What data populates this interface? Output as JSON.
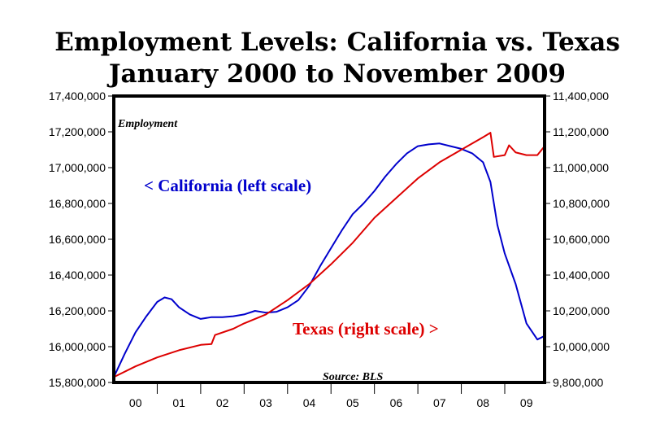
{
  "chart_data": {
    "type": "line",
    "title": "Employment Levels: California vs. Texas",
    "subtitle": "January 2000 to November 2009",
    "inner_label": "Employment",
    "source": "Source: BLS",
    "x_tick_labels": [
      "00",
      "01",
      "02",
      "03",
      "04",
      "05",
      "06",
      "07",
      "08",
      "09"
    ],
    "x_range": [
      2000.0,
      2009.917
    ],
    "y_left": {
      "range": [
        15800000,
        17400000
      ],
      "ticks": [
        "15,800,000",
        "16,000,000",
        "16,200,000",
        "16,400,000",
        "16,600,000",
        "16,800,000",
        "17,000,000",
        "17,200,000",
        "17,400,000"
      ],
      "tick_values": [
        15800000,
        16000000,
        16200000,
        16400000,
        16600000,
        16800000,
        17000000,
        17200000,
        17400000
      ]
    },
    "y_right": {
      "range": [
        9800000,
        11400000
      ],
      "ticks": [
        "9,800,000",
        "10,000,000",
        "10,200,000",
        "10,400,000",
        "10,600,000",
        "10,800,000",
        "11,000,000",
        "11,200,000",
        "11,400,000"
      ],
      "tick_values": [
        9800000,
        10000000,
        10200000,
        10400000,
        10600000,
        10800000,
        11000000,
        11200000,
        11400000
      ]
    },
    "series": [
      {
        "name": "California",
        "axis": "left",
        "color": "#0000cc",
        "annotation": "< California (left scale)",
        "points": [
          [
            2000.0,
            15830000
          ],
          [
            2000.25,
            15960000
          ],
          [
            2000.5,
            16080000
          ],
          [
            2000.75,
            16170000
          ],
          [
            2001.0,
            16250000
          ],
          [
            2001.17,
            16275000
          ],
          [
            2001.33,
            16265000
          ],
          [
            2001.5,
            16220000
          ],
          [
            2001.75,
            16180000
          ],
          [
            2002.0,
            16155000
          ],
          [
            2002.25,
            16165000
          ],
          [
            2002.5,
            16165000
          ],
          [
            2002.75,
            16170000
          ],
          [
            2003.0,
            16180000
          ],
          [
            2003.25,
            16200000
          ],
          [
            2003.5,
            16190000
          ],
          [
            2003.75,
            16195000
          ],
          [
            2004.0,
            16220000
          ],
          [
            2004.25,
            16260000
          ],
          [
            2004.5,
            16340000
          ],
          [
            2004.75,
            16450000
          ],
          [
            2005.0,
            16550000
          ],
          [
            2005.25,
            16650000
          ],
          [
            2005.5,
            16740000
          ],
          [
            2005.75,
            16800000
          ],
          [
            2006.0,
            16870000
          ],
          [
            2006.25,
            16950000
          ],
          [
            2006.5,
            17020000
          ],
          [
            2006.75,
            17080000
          ],
          [
            2007.0,
            17120000
          ],
          [
            2007.25,
            17130000
          ],
          [
            2007.5,
            17135000
          ],
          [
            2007.75,
            17120000
          ],
          [
            2008.0,
            17105000
          ],
          [
            2008.25,
            17080000
          ],
          [
            2008.5,
            17030000
          ],
          [
            2008.67,
            16920000
          ],
          [
            2008.83,
            16680000
          ],
          [
            2009.0,
            16520000
          ],
          [
            2009.25,
            16350000
          ],
          [
            2009.5,
            16130000
          ],
          [
            2009.75,
            16040000
          ],
          [
            2009.917,
            16060000
          ]
        ]
      },
      {
        "name": "Texas",
        "axis": "right",
        "color": "#dd0000",
        "annotation": "Texas (right scale) >",
        "points": [
          [
            2000.0,
            9830000
          ],
          [
            2000.5,
            9890000
          ],
          [
            2001.0,
            9940000
          ],
          [
            2001.5,
            9980000
          ],
          [
            2002.0,
            10010000
          ],
          [
            2002.25,
            10015000
          ],
          [
            2002.33,
            10065000
          ],
          [
            2002.75,
            10100000
          ],
          [
            2003.0,
            10130000
          ],
          [
            2003.5,
            10180000
          ],
          [
            2004.0,
            10260000
          ],
          [
            2004.5,
            10350000
          ],
          [
            2005.0,
            10460000
          ],
          [
            2005.5,
            10580000
          ],
          [
            2006.0,
            10720000
          ],
          [
            2006.5,
            10830000
          ],
          [
            2007.0,
            10940000
          ],
          [
            2007.5,
            11030000
          ],
          [
            2008.0,
            11100000
          ],
          [
            2008.5,
            11170000
          ],
          [
            2008.67,
            11195000
          ],
          [
            2008.75,
            11060000
          ],
          [
            2009.0,
            11070000
          ],
          [
            2009.1,
            11125000
          ],
          [
            2009.25,
            11085000
          ],
          [
            2009.5,
            11070000
          ],
          [
            2009.75,
            11070000
          ],
          [
            2009.917,
            11120000
          ]
        ]
      }
    ]
  }
}
